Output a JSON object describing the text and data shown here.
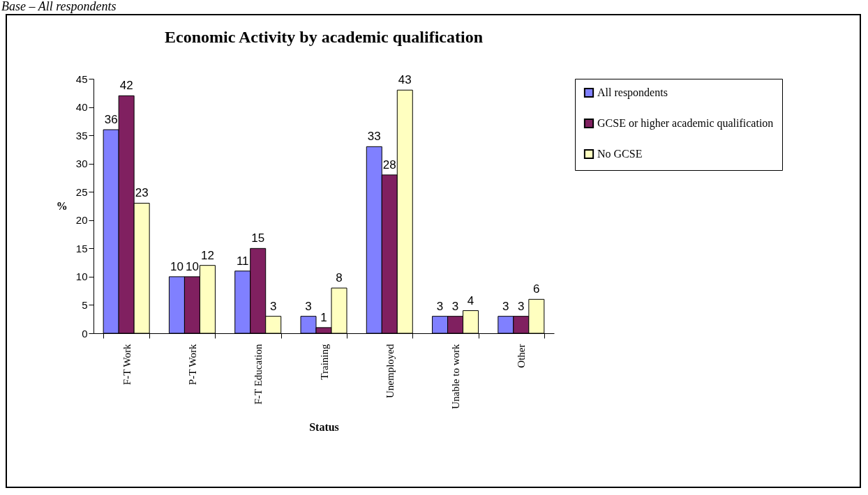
{
  "chart_data": {
    "type": "bar",
    "title": "Economic Activity by academic qualification",
    "xlabel": "Status",
    "ylabel": "%",
    "annotations": [
      "Base – All respondents"
    ],
    "categories": [
      "F-T Work",
      "P-T Work",
      "F-T Education",
      "Training",
      "Unemployed",
      "Unable to work",
      "Other"
    ],
    "series": [
      {
        "name": "All respondents",
        "color": "#8080ff",
        "values": [
          36,
          10,
          11,
          3,
          33,
          3,
          3
        ]
      },
      {
        "name": "GCSE or higher academic qualification",
        "color": "#802060",
        "values": [
          42,
          10,
          15,
          1,
          28,
          3,
          3
        ]
      },
      {
        "name": "No GCSE",
        "color": "#ffffc0",
        "values": [
          23,
          12,
          3,
          8,
          43,
          4,
          6
        ]
      }
    ],
    "ylim": [
      0,
      45
    ],
    "yticks": [
      0,
      5,
      10,
      15,
      20,
      25,
      30,
      35,
      40,
      45
    ],
    "grid": false,
    "legend": "right",
    "data_labels": true
  }
}
